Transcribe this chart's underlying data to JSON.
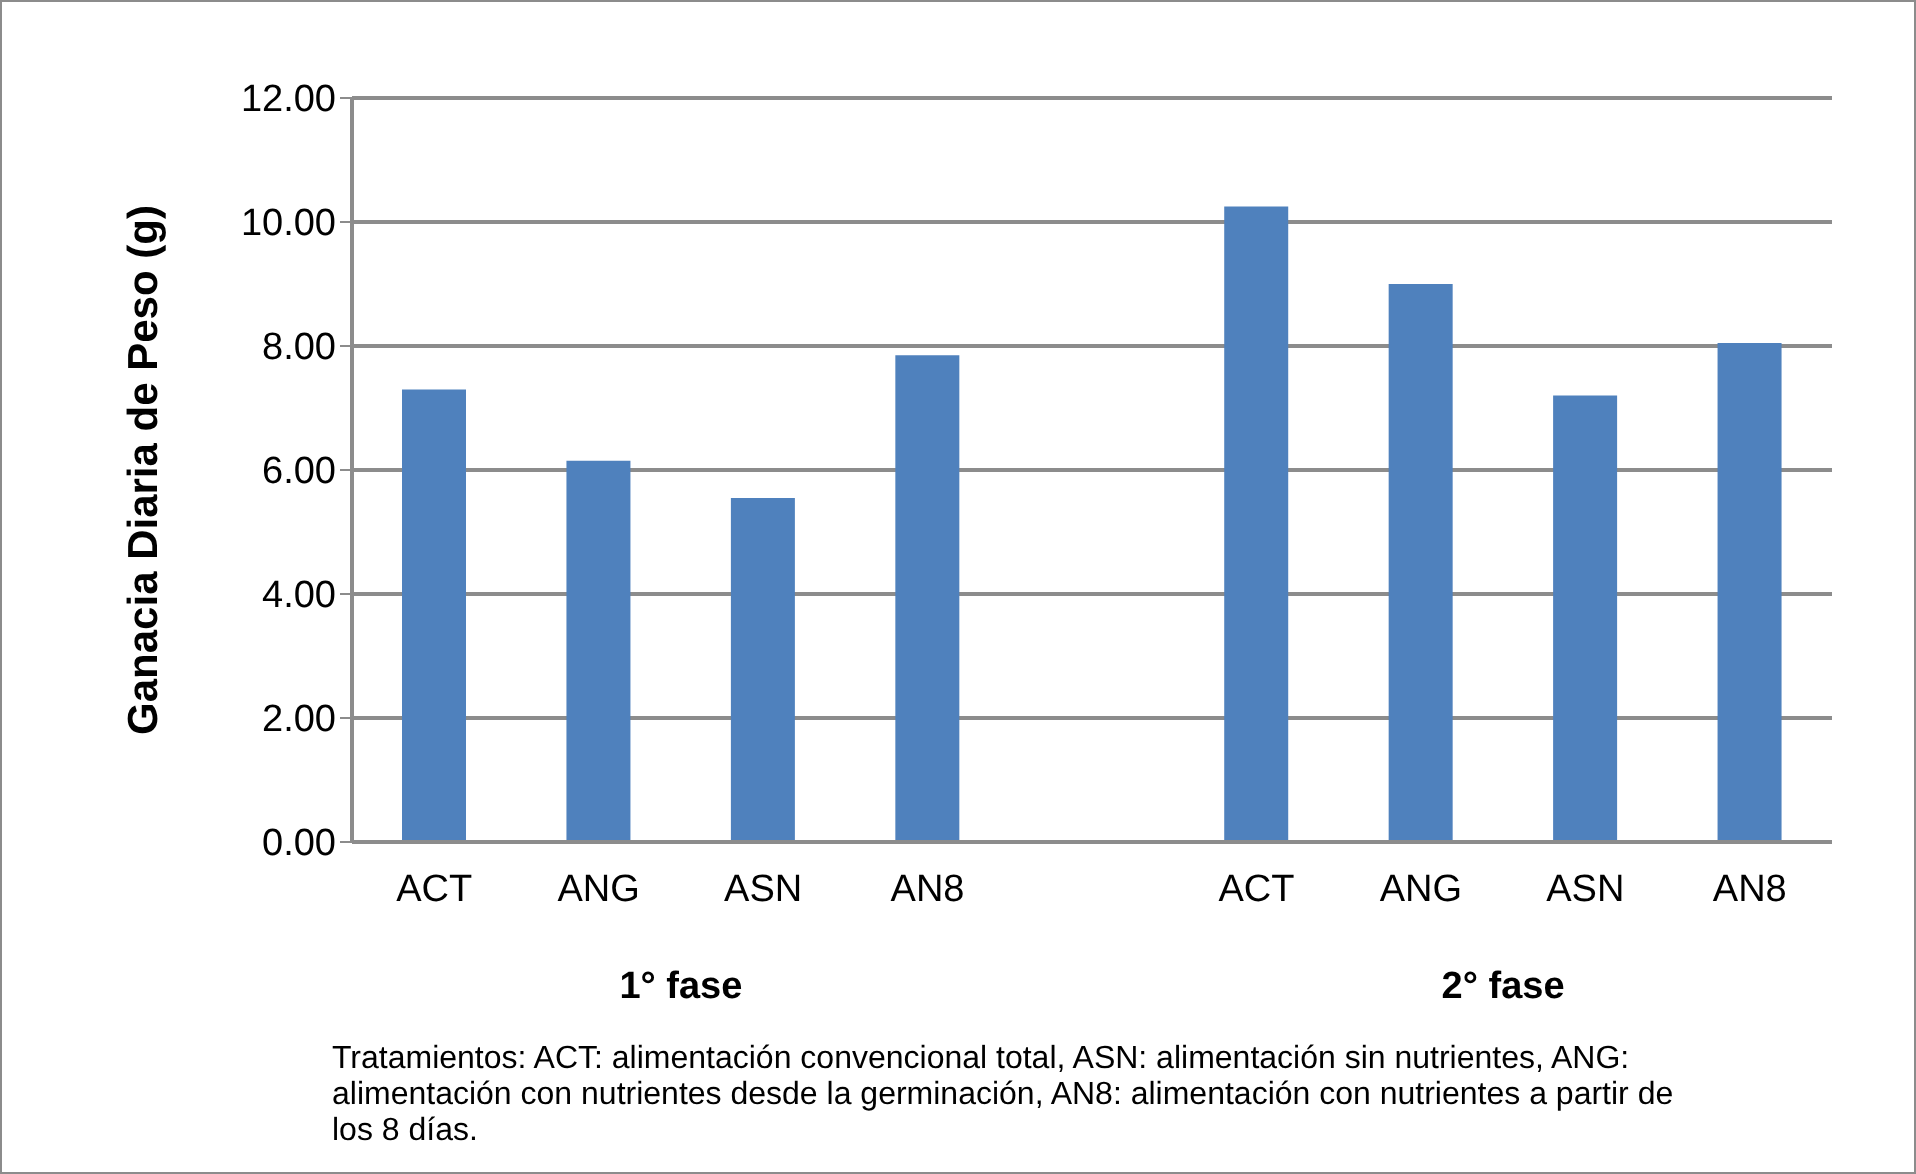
{
  "chart_data": {
    "type": "bar",
    "ylabel": "Ganacia Diaria de Peso (g)",
    "categories": [
      "ACT",
      "ANG",
      "ASN",
      "AN8",
      null,
      "ACT",
      "ANG",
      "ASN",
      "AN8"
    ],
    "values": [
      7.3,
      6.15,
      5.55,
      7.85,
      null,
      10.25,
      9.0,
      7.2,
      8.05
    ],
    "color": "#4f81bd",
    "ylim": [
      0,
      12
    ],
    "yticks": [
      {
        "value": 0,
        "label": "0.00"
      },
      {
        "value": 2,
        "label": "2.00"
      },
      {
        "value": 4,
        "label": "4.00"
      },
      {
        "value": 6,
        "label": "6.00"
      },
      {
        "value": 8,
        "label": "8.00"
      },
      {
        "value": 10,
        "label": "10.00"
      },
      {
        "value": 12,
        "label": "12.00"
      }
    ],
    "grid": "y",
    "annotations": [
      "1° fase",
      "2° fase",
      "Tratamientos: ACT: alimentación convencional total, ASN: alimentación sin nutrientes, ANG: alimentación con nutrientes desde la germinación, AN8: alimentación con nutrientes a partir de los 8 días."
    ]
  }
}
